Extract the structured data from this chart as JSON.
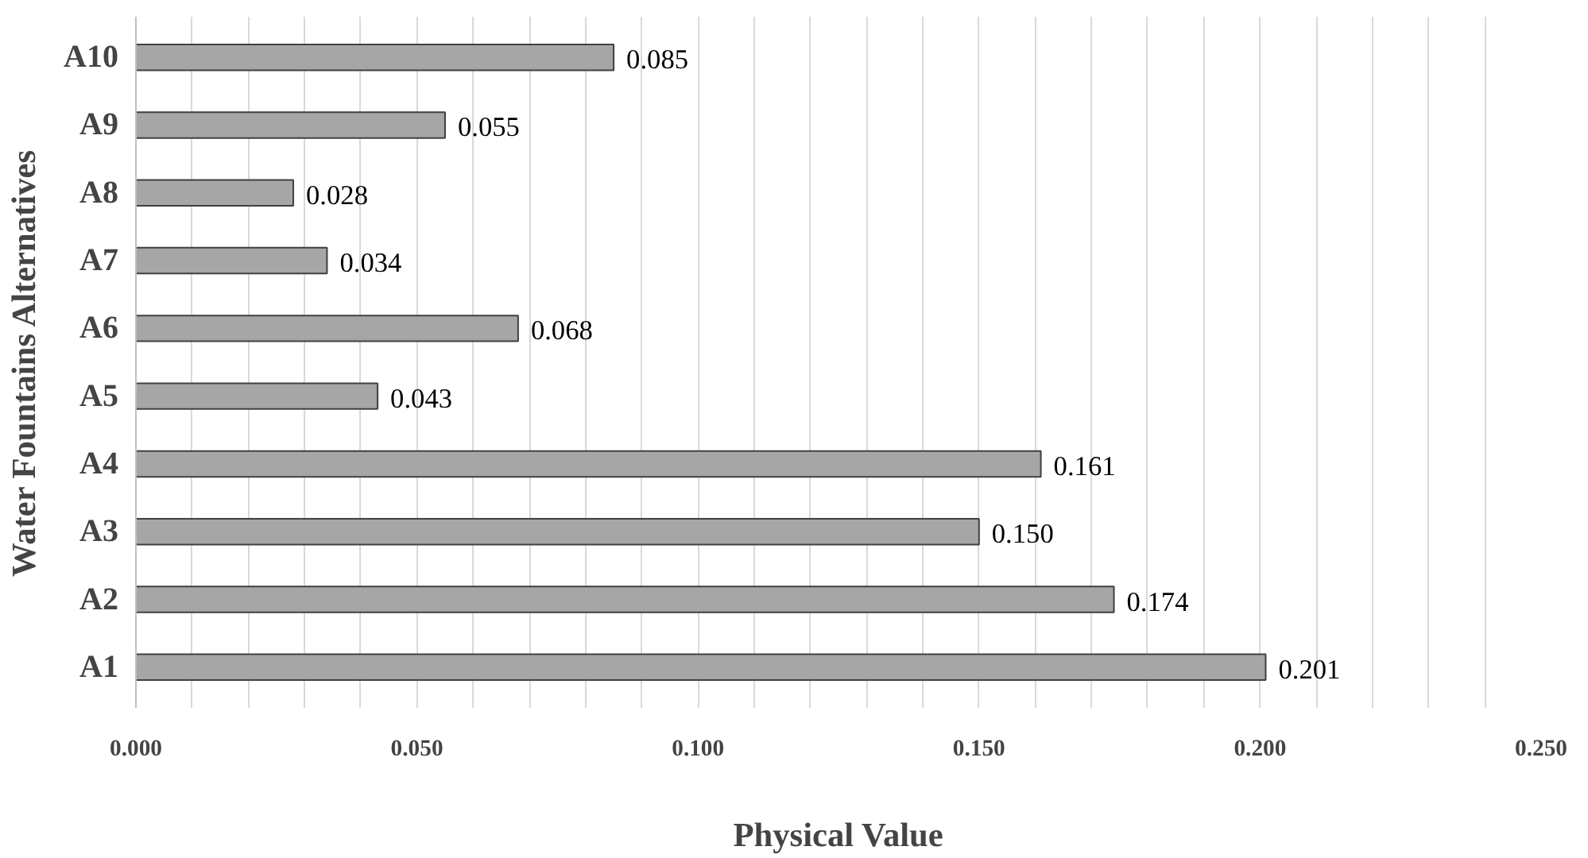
{
  "chart_data": {
    "type": "bar",
    "orientation": "horizontal",
    "xlabel": "Physical Value",
    "ylabel": "Water Fountains Alternatives",
    "categories": [
      "A10",
      "A9",
      "A8",
      "A7",
      "A6",
      "A5",
      "A4",
      "A3",
      "A2",
      "A1"
    ],
    "values": [
      0.085,
      0.055,
      0.028,
      0.034,
      0.068,
      0.043,
      0.161,
      0.15,
      0.174,
      0.201
    ],
    "color": "#a6a6a6",
    "value_labels": [
      "0.085",
      "0.055",
      "0.028",
      "0.034",
      "0.068",
      "0.043",
      "0.161",
      "0.150",
      "0.174",
      "0.201"
    ],
    "grid": "x",
    "xlim": [
      0,
      0.25
    ],
    "xticks": [
      {
        "value": 0,
        "label": "0.000"
      },
      {
        "value": 0.01,
        "label": null
      },
      {
        "value": 0.02,
        "label": null
      },
      {
        "value": 0.03,
        "label": null
      },
      {
        "value": 0.04,
        "label": null
      },
      {
        "value": 0.05,
        "label": "0.050"
      },
      {
        "value": 0.06,
        "label": null
      },
      {
        "value": 0.07,
        "label": null
      },
      {
        "value": 0.08,
        "label": null
      },
      {
        "value": 0.09,
        "label": null
      },
      {
        "value": 0.1,
        "label": "0.100"
      },
      {
        "value": 0.11,
        "label": null
      },
      {
        "value": 0.12,
        "label": null
      },
      {
        "value": 0.13,
        "label": null
      },
      {
        "value": 0.14,
        "label": null
      },
      {
        "value": 0.15,
        "label": "0.150"
      },
      {
        "value": 0.16,
        "label": null
      },
      {
        "value": 0.17,
        "label": null
      },
      {
        "value": 0.18,
        "label": null
      },
      {
        "value": 0.19,
        "label": null
      },
      {
        "value": 0.2,
        "label": "0.200"
      },
      {
        "value": 0.21,
        "label": null
      },
      {
        "value": 0.22,
        "label": null
      },
      {
        "value": 0.23,
        "label": null
      },
      {
        "value": 0.24,
        "label": null
      },
      {
        "value": 0.25,
        "label": "0.250"
      }
    ]
  }
}
